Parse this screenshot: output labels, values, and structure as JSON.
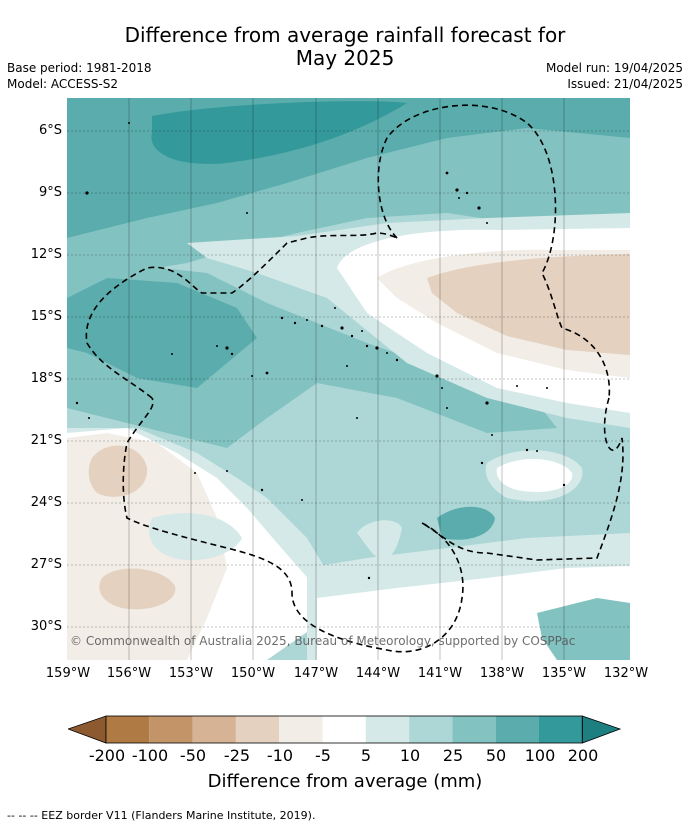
{
  "header": {
    "title_line1": "Difference from average rainfall forecast for",
    "title_line2": "May 2025",
    "base_period": "Base period: 1981-2018",
    "model": "Model: ACCESS-S2",
    "model_run": "Model run: 19/04/2025",
    "issued": "Issued: 21/04/2025"
  },
  "map": {
    "lat_labels": [
      "6°S",
      "9°S",
      "12°S",
      "15°S",
      "18°S",
      "21°S",
      "24°S",
      "27°S",
      "30°S"
    ],
    "lon_labels": [
      "159°W",
      "156°W",
      "153°W",
      "150°W",
      "147°W",
      "144°W",
      "141°W",
      "138°W",
      "135°W",
      "132°W"
    ],
    "copyright": "© Commonwealth of Australia 2025, Bureau of Meteorology, supported by COSPPac"
  },
  "colorbar": {
    "ticks": [
      "-200",
      "-100",
      "-50",
      "-25",
      "-10",
      "-5",
      "5",
      "10",
      "25",
      "50",
      "100",
      "200"
    ],
    "colors": [
      "#8c5a2e",
      "#b07a45",
      "#c29467",
      "#d5b394",
      "#e4d1bf",
      "#f2ede6",
      "#ffffff",
      "#d5e9e8",
      "#acd7d6",
      "#82c2c1",
      "#5aadac",
      "#34999a",
      "#1e7f80"
    ],
    "title": "Difference from average (mm)"
  },
  "footnote": "--  --  -- EEZ border V11 (Flanders Marine Institute, 2019)."
}
